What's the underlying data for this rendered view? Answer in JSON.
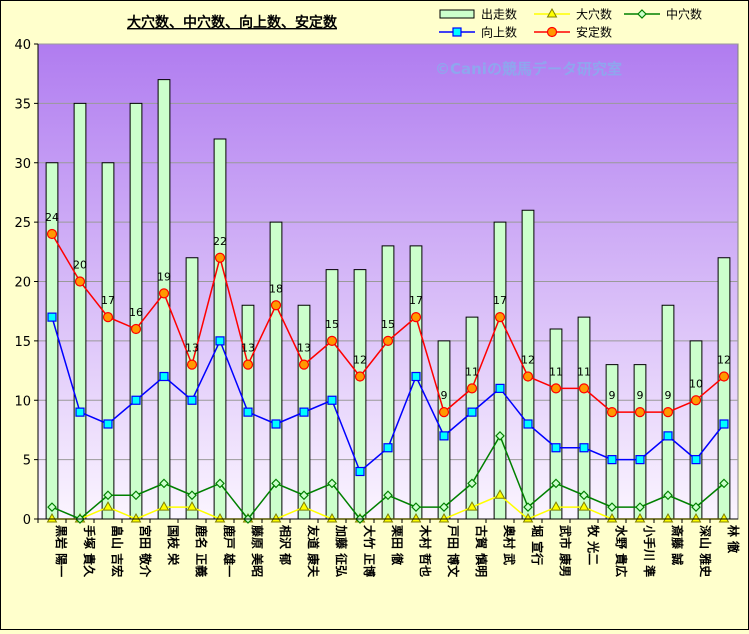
{
  "chart_data": {
    "type": "bar",
    "title": "大穴数、中穴数、向上数、安定数",
    "watermark": "©Caniの競馬データ研究室",
    "ylim": [
      0,
      40
    ],
    "yticks": [
      0,
      5,
      10,
      15,
      20,
      25,
      30,
      35,
      40
    ],
    "legend_position": "top-right",
    "categories": [
      "黒岩 陽一",
      "手塚 貴久",
      "畠山 吉宏",
      "宮田 敬介",
      "国枝 栄",
      "鹿名 正義",
      "鹿戸 雄一",
      "藤原 美昭",
      "相沢 郁",
      "友道 康夫",
      "加藤 征弘",
      "大竹 正博",
      "栗田 徹",
      "木村 哲也",
      "戸田 博文",
      "古賀 慎明",
      "奥村 武",
      "堀 宣行",
      "武市 康男",
      "牧 光二",
      "水野 貴広",
      "小手川 準",
      "斎藤 誠",
      "深山 雅史",
      "林 徹"
    ],
    "series": [
      {
        "name": "出走数",
        "type": "bar",
        "color": "#ccffcc",
        "values": [
          30,
          35,
          30,
          35,
          37,
          22,
          32,
          18,
          25,
          18,
          21,
          21,
          23,
          23,
          15,
          17,
          25,
          26,
          16,
          17,
          13,
          13,
          18,
          15,
          22
        ]
      },
      {
        "name": "大穴数",
        "type": "line",
        "color": "#ffff00",
        "values": [
          0,
          0,
          1,
          0,
          1,
          1,
          0,
          0,
          0,
          1,
          0,
          0,
          0,
          0,
          0,
          1,
          2,
          0,
          1,
          1,
          0,
          0,
          0,
          0,
          0
        ]
      },
      {
        "name": "中穴数",
        "type": "line",
        "color": "#008000",
        "values": [
          1,
          0,
          2,
          2,
          3,
          2,
          3,
          0,
          3,
          2,
          3,
          0,
          2,
          1,
          1,
          3,
          7,
          1,
          3,
          2,
          1,
          1,
          2,
          1,
          3
        ]
      },
      {
        "name": "向上数",
        "type": "line",
        "color": "#0000ff",
        "values": [
          17,
          9,
          8,
          10,
          12,
          10,
          15,
          9,
          8,
          9,
          10,
          4,
          6,
          12,
          7,
          9,
          11,
          8,
          6,
          6,
          5,
          5,
          7,
          5,
          8
        ]
      },
      {
        "name": "安定数",
        "type": "line",
        "color": "#ff0000",
        "values": [
          24,
          20,
          17,
          16,
          19,
          13,
          22,
          13,
          18,
          13,
          15,
          12,
          15,
          17,
          9,
          11,
          17,
          12,
          11,
          11,
          9,
          9,
          9,
          10,
          12
        ]
      }
    ]
  }
}
